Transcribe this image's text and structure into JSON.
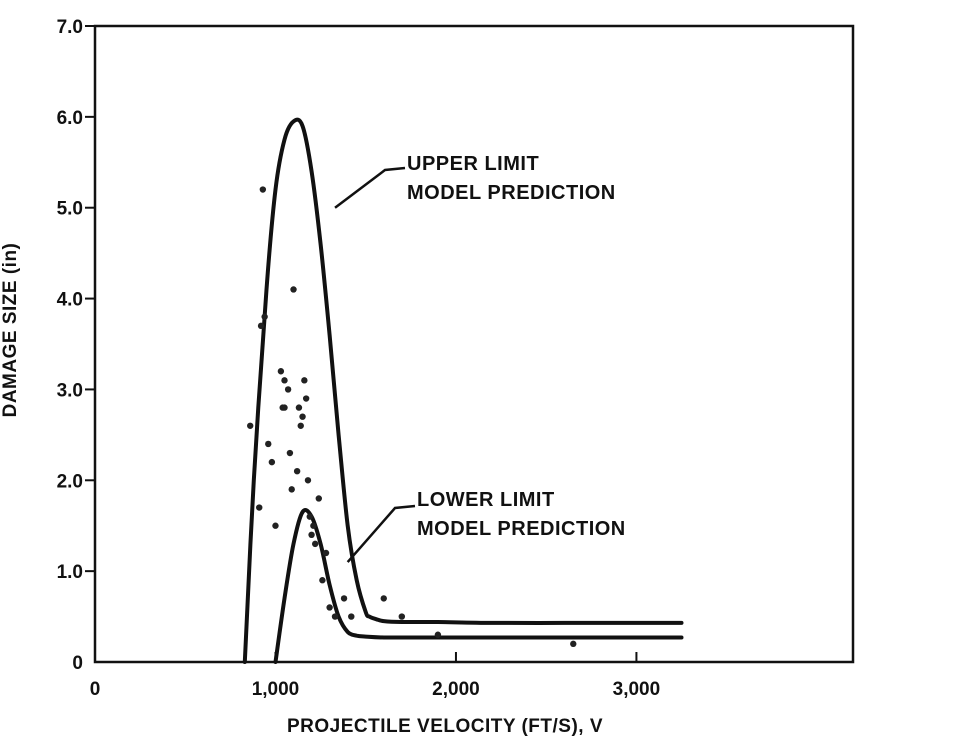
{
  "chart_data": {
    "type": "line",
    "title": "",
    "xlabel": "PROJECTILE VELOCITY (FT/S), V",
    "ylabel": "DAMAGE SIZE (in)",
    "xlim": [
      0,
      4200
    ],
    "ylim": [
      0,
      7.0
    ],
    "x_ticks": [
      {
        "value": 0,
        "label": "0"
      },
      {
        "value": 1000,
        "label": "1,000"
      },
      {
        "value": 2000,
        "label": "2,000"
      },
      {
        "value": 3000,
        "label": "3,000"
      }
    ],
    "y_ticks": [
      {
        "value": 0,
        "label": "0"
      },
      {
        "value": 1.0,
        "label": "1.0"
      },
      {
        "value": 2.0,
        "label": "2.0"
      },
      {
        "value": 3.0,
        "label": "3.0"
      },
      {
        "value": 4.0,
        "label": "4.0"
      },
      {
        "value": 5.0,
        "label": "5.0"
      },
      {
        "value": 6.0,
        "label": "6.0"
      },
      {
        "value": 7.0,
        "label": "7.0"
      }
    ],
    "grid": false,
    "series": [
      {
        "name": "UPPER LIMIT MODEL PREDICTION",
        "x": [
          830,
          880,
          950,
          1000,
          1050,
          1100,
          1150,
          1200,
          1250,
          1300,
          1350,
          1400,
          1450,
          1500,
          1520,
          1560,
          1600,
          1700,
          1900,
          2200,
          2600,
          3000,
          3250
        ],
        "y": [
          0,
          2.0,
          4.1,
          5.2,
          5.75,
          5.95,
          5.9,
          5.4,
          4.6,
          3.6,
          2.5,
          1.5,
          0.9,
          0.55,
          0.5,
          0.47,
          0.45,
          0.44,
          0.44,
          0.43,
          0.43,
          0.43,
          0.43
        ]
      },
      {
        "name": "LOWER LIMIT MODEL PREDICTION",
        "x": [
          1000,
          1050,
          1100,
          1150,
          1200,
          1250,
          1300,
          1350,
          1400,
          1450,
          1500,
          1600,
          1800,
          2200,
          2600,
          3000,
          3250
        ],
        "y": [
          0,
          0.7,
          1.3,
          1.65,
          1.6,
          1.3,
          0.85,
          0.5,
          0.33,
          0.29,
          0.28,
          0.27,
          0.27,
          0.27,
          0.27,
          0.27,
          0.27
        ]
      }
    ],
    "scatter": {
      "x": [
        860,
        910,
        920,
        930,
        940,
        960,
        980,
        1000,
        1030,
        1040,
        1050,
        1050,
        1070,
        1080,
        1090,
        1100,
        1120,
        1130,
        1140,
        1150,
        1160,
        1170,
        1180,
        1190,
        1200,
        1210,
        1220,
        1240,
        1260,
        1280,
        1300,
        1330,
        1380,
        1420,
        1600,
        1700,
        1900,
        2650
      ],
      "y": [
        2.6,
        1.7,
        3.7,
        5.2,
        3.8,
        2.4,
        2.2,
        1.5,
        3.2,
        2.8,
        3.1,
        2.8,
        3.0,
        2.3,
        1.9,
        4.1,
        2.1,
        2.8,
        2.6,
        2.7,
        3.1,
        2.9,
        2.0,
        1.6,
        1.4,
        1.5,
        1.3,
        1.8,
        0.9,
        1.2,
        0.6,
        0.5,
        0.7,
        0.5,
        0.7,
        0.5,
        0.3,
        0.2
      ]
    },
    "annotations": [
      {
        "lines": [
          "UPPER LIMIT",
          "MODEL PREDICTION"
        ],
        "points_to": [
          1330,
          5.0
        ]
      },
      {
        "lines": [
          "LOWER LIMIT",
          "MODEL PREDICTION"
        ],
        "points_to": [
          1400,
          1.1
        ]
      }
    ],
    "colors": {
      "line": "#111111",
      "axis": "#111111",
      "background": "#ffffff"
    }
  }
}
